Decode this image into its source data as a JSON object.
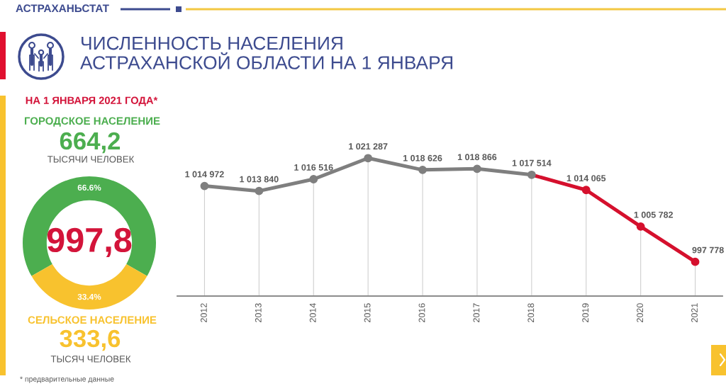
{
  "chart_data": [
    {
      "type": "donut",
      "title": "НА 1 ЯНВАРЯ 2021 ГОДА*",
      "categories": [
        "ГОРОДСКОЕ НАСЕЛЕНИЕ",
        "СЕЛЬСКОЕ НАСЕЛЕНИЕ"
      ],
      "values": [
        66.6,
        33.4
      ],
      "colors": [
        "#4cae4f",
        "#f8c22e"
      ],
      "value_labels": [
        "66.6%",
        "33.4%"
      ],
      "annotations": [
        "997,8",
        "664,2",
        "ТЫСЯЧИ ЧЕЛОВЕК",
        "333,6",
        "ТЫСЯЧ ЧЕЛОВЕК",
        "* предварительные данные"
      ]
    },
    {
      "type": "line",
      "title": "ЧИСЛЕННОСТЬ НАСЕЛЕНИЯ\nАСТРАХАНСКОЙ ОБЛАСТИ НА 1 ЯНВАРЯ",
      "annotations": [
        "АСТРАХАНЬСТАТ"
      ],
      "categories": [
        "2012",
        "2013",
        "2014",
        "2015",
        "2016",
        "2017",
        "2018",
        "2019",
        "2020",
        "2021"
      ],
      "series": [
        {
          "color": "#7f7f7f",
          "values": [
            1014972,
            1013840,
            1016516,
            1021287,
            1018626,
            1018866,
            1017514,
            null,
            null,
            null
          ],
          "value_labels": [
            "1 014 972",
            "1 013 840",
            "1 016 516",
            "1 021 287",
            "1 018 626",
            "1 018 866",
            "1 017 514",
            null,
            null,
            null
          ]
        },
        {
          "color": "#d5102d",
          "values": [
            null,
            null,
            null,
            null,
            null,
            null,
            1017514,
            1014065,
            1005782,
            997778
          ],
          "value_labels": [
            null,
            null,
            null,
            null,
            null,
            null,
            null,
            "1 014 065",
            "1 005 782",
            "997 778"
          ]
        }
      ],
      "tick_labels": "x",
      "grid": "x",
      "marker": "circle",
      "line_style": "solid"
    }
  ]
}
